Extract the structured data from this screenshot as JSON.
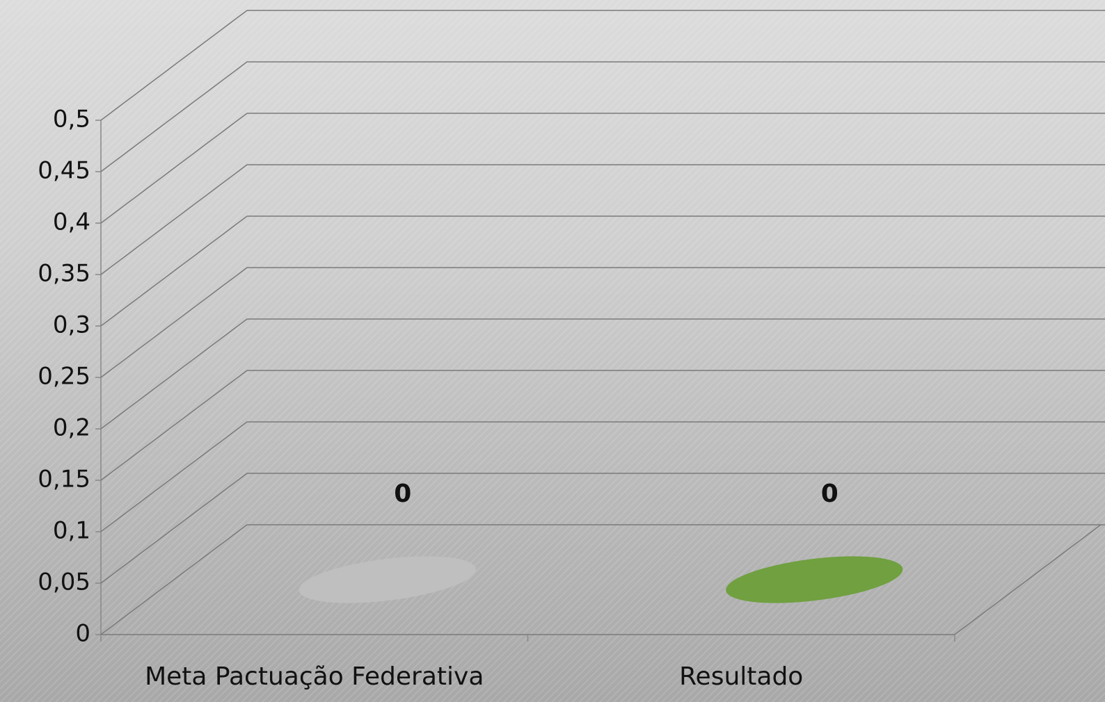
{
  "chart_data": {
    "type": "bar",
    "categories": [
      "Meta Pactuação Federativa",
      "Resultado"
    ],
    "values": [
      0,
      0
    ],
    "colors": [
      "#bfbfbf",
      "#70a040"
    ],
    "ylim": [
      0,
      0.5
    ],
    "yticks": [
      0,
      {
        "value": 0.05,
        "label": "0,05"
      },
      {
        "value": 0.1,
        "label": "0,1"
      },
      {
        "value": 0.15,
        "label": "0,15"
      },
      {
        "value": 0.2,
        "label": "0,2"
      },
      {
        "value": 0.25,
        "label": "0,25"
      },
      {
        "value": 0.3,
        "label": "0,3"
      },
      {
        "value": 0.35,
        "label": "0,35"
      },
      {
        "value": 0.4,
        "label": "0,4"
      },
      {
        "value": 0.45,
        "label": "0,45"
      },
      {
        "value": 0.5,
        "label": "0,5"
      }
    ],
    "grid": true
  }
}
